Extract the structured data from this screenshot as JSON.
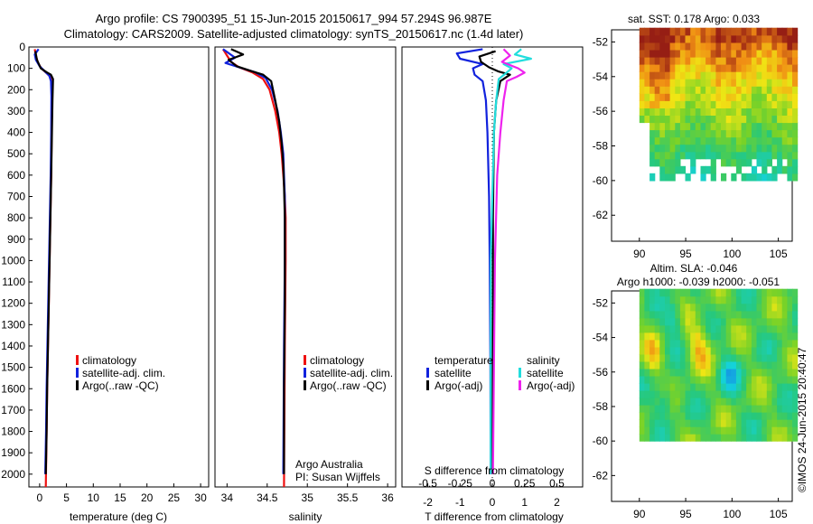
{
  "header": {
    "line1": "Argo profile: CS 7900395_51 15-Jun-2015 20150617_994 57.294S 96.987E",
    "line2": "Climatology: CARS2009. Satellite-adjusted climatology: synTS_20150617.nc (1.4d later)"
  },
  "footer_note": "©IMOS 24-Jun-2015 20:40:47",
  "credits": {
    "line1": "Argo Australia",
    "line2": "PI: Susan Wijffels"
  },
  "colors": {
    "climatology": "#ee1111",
    "satellite": "#1122dd",
    "argo": "#000000",
    "sat_salinity": "#22dddd",
    "argo_salinity": "#ee22ee"
  },
  "chart_data": [
    {
      "type": "line",
      "id": "temperature",
      "xlabel": "temperature (deg C)",
      "ylabel": "",
      "xlim": [
        -2,
        31.5
      ],
      "ylim": [
        2060,
        0
      ],
      "y_reversed": true,
      "xticks": [
        0,
        5,
        10,
        15,
        20,
        25,
        30
      ],
      "yticks": [
        0,
        100,
        200,
        300,
        400,
        500,
        600,
        700,
        800,
        900,
        1000,
        1100,
        1200,
        1300,
        1400,
        1500,
        1600,
        1700,
        1800,
        1900,
        2000
      ],
      "legend": [
        "climatology",
        "satellite-adj. clim.",
        "Argo(..raw -QC)"
      ],
      "series": [
        {
          "name": "climatology",
          "color": "#ee1111",
          "points": [
            [
              -0.9,
              10
            ],
            [
              -0.7,
              40
            ],
            [
              -0.3,
              75
            ],
            [
              0.3,
              100
            ],
            [
              1.2,
              120
            ],
            [
              2.0,
              140
            ],
            [
              2.3,
              170
            ],
            [
              2.3,
              230
            ],
            [
              2.25,
              400
            ],
            [
              2.15,
              600
            ],
            [
              2.0,
              800
            ],
            [
              1.85,
              1000
            ],
            [
              1.7,
              1200
            ],
            [
              1.55,
              1400
            ],
            [
              1.4,
              1600
            ],
            [
              1.3,
              1800
            ],
            [
              1.15,
              2060
            ]
          ]
        },
        {
          "name": "satellite-adj. clim.",
          "color": "#1122dd",
          "points": [
            [
              -0.2,
              10
            ],
            [
              -0.9,
              35
            ],
            [
              -0.7,
              60
            ],
            [
              0.0,
              90
            ],
            [
              1.0,
              115
            ],
            [
              1.8,
              135
            ],
            [
              2.1,
              160
            ],
            [
              2.2,
              230
            ],
            [
              2.15,
              400
            ],
            [
              2.05,
              600
            ],
            [
              1.9,
              800
            ],
            [
              1.75,
              1000
            ],
            [
              1.6,
              1200
            ],
            [
              1.45,
              1400
            ],
            [
              1.3,
              1600
            ],
            [
              1.2,
              1800
            ],
            [
              1.05,
              2000
            ]
          ]
        },
        {
          "name": "Argo(..raw -QC)",
          "color": "#000000",
          "points": [
            [
              -0.8,
              20
            ],
            [
              -0.5,
              60
            ],
            [
              0.2,
              100
            ],
            [
              1.3,
              118
            ],
            [
              2.1,
              130
            ],
            [
              2.5,
              150
            ],
            [
              2.4,
              250
            ],
            [
              2.3,
              400
            ],
            [
              2.15,
              600
            ],
            [
              2.0,
              800
            ],
            [
              1.85,
              1000
            ],
            [
              1.7,
              1200
            ],
            [
              1.55,
              1400
            ],
            [
              1.4,
              1600
            ],
            [
              1.3,
              1800
            ],
            [
              1.15,
              2000
            ]
          ]
        }
      ]
    },
    {
      "type": "line",
      "id": "salinity",
      "xlabel": "salinity",
      "xlim": [
        33.85,
        36.1
      ],
      "ylim": [
        2060,
        0
      ],
      "y_reversed": true,
      "xticks": [
        34,
        34.5,
        35,
        35.5,
        36
      ],
      "legend": [
        "climatology",
        "satellite-adj. clim.",
        "Argo(..raw -QC)"
      ],
      "series": [
        {
          "name": "climatology",
          "color": "#ee1111",
          "points": [
            [
              33.95,
              10
            ],
            [
              34.0,
              40
            ],
            [
              34.05,
              70
            ],
            [
              34.15,
              95
            ],
            [
              34.32,
              120
            ],
            [
              34.45,
              150
            ],
            [
              34.53,
              200
            ],
            [
              34.6,
              300
            ],
            [
              34.65,
              400
            ],
            [
              34.68,
              500
            ],
            [
              34.7,
              600
            ],
            [
              34.72,
              700
            ],
            [
              34.73,
              800
            ],
            [
              34.73,
              1000
            ],
            [
              34.72,
              1400
            ],
            [
              34.71,
              2060
            ]
          ]
        },
        {
          "name": "satellite-adj. clim.",
          "color": "#1122dd",
          "points": [
            [
              33.95,
              10
            ],
            [
              34.1,
              50
            ],
            [
              33.98,
              75
            ],
            [
              34.15,
              95
            ],
            [
              34.35,
              118
            ],
            [
              34.48,
              145
            ],
            [
              34.56,
              200
            ],
            [
              34.63,
              300
            ],
            [
              34.67,
              400
            ],
            [
              34.7,
              500
            ],
            [
              34.71,
              600
            ],
            [
              34.72,
              700
            ],
            [
              34.72,
              1000
            ],
            [
              34.71,
              1400
            ],
            [
              34.7,
              2000
            ]
          ]
        },
        {
          "name": "Argo(..raw -QC)",
          "color": "#000000",
          "points": [
            [
              34.05,
              10
            ],
            [
              34.2,
              35
            ],
            [
              34.02,
              60
            ],
            [
              34.12,
              90
            ],
            [
              34.32,
              115
            ],
            [
              34.45,
              130
            ],
            [
              34.55,
              160
            ],
            [
              34.6,
              250
            ],
            [
              34.65,
              350
            ],
            [
              34.68,
              450
            ],
            [
              34.7,
              550
            ],
            [
              34.71,
              650
            ],
            [
              34.72,
              800
            ],
            [
              34.72,
              1200
            ],
            [
              34.71,
              1600
            ],
            [
              34.71,
              2000
            ]
          ]
        }
      ]
    },
    {
      "type": "line",
      "id": "difference",
      "xlabel": "T difference from climatology",
      "x2label": "S difference from climatology",
      "xlim": [
        -2.8,
        2.8
      ],
      "ylim": [
        2060,
        0
      ],
      "y_reversed": true,
      "xticks": [
        -2,
        -1,
        0,
        1,
        2
      ],
      "x2ticks": [
        "-0.5",
        "-0.25",
        "0",
        "0.25",
        "0.5"
      ],
      "legend_titles": [
        "temperature",
        "salinity"
      ],
      "legend": [
        "satellite",
        "Argo(-adj)",
        "satellite",
        "Argo(-adj)"
      ],
      "series": [
        {
          "name": "temperature satellite",
          "color": "#1122dd",
          "points": [
            [
              -0.3,
              10
            ],
            [
              -1.1,
              30
            ],
            [
              -1.0,
              55
            ],
            [
              -0.3,
              80
            ],
            [
              -0.6,
              100
            ],
            [
              -0.55,
              130
            ],
            [
              -0.3,
              160
            ],
            [
              -0.2,
              250
            ],
            [
              -0.15,
              400
            ],
            [
              -0.1,
              700
            ],
            [
              -0.08,
              1000
            ],
            [
              -0.06,
              1500
            ],
            [
              -0.05,
              2000
            ]
          ]
        },
        {
          "name": "temperature Argo(-adj)",
          "color": "#000000",
          "points": [
            [
              0.1,
              20
            ],
            [
              -0.4,
              45
            ],
            [
              -0.35,
              70
            ],
            [
              -0.1,
              95
            ],
            [
              0.2,
              115
            ],
            [
              0.55,
              130
            ],
            [
              0.25,
              160
            ],
            [
              0.12,
              250
            ],
            [
              0.05,
              400
            ],
            [
              0.02,
              800
            ],
            [
              0.02,
              1200
            ],
            [
              0.0,
              2000
            ]
          ]
        },
        {
          "name": "salinity satellite",
          "color": "#22dddd",
          "points": [
            [
              0.9,
              10
            ],
            [
              0.7,
              35
            ],
            [
              1.2,
              55
            ],
            [
              0.35,
              80
            ],
            [
              0.6,
              100
            ],
            [
              0.4,
              125
            ],
            [
              0.2,
              150
            ],
            [
              0.12,
              250
            ],
            [
              0.05,
              400
            ],
            [
              0.0,
              700
            ],
            [
              -0.05,
              1000
            ],
            [
              -0.05,
              2000
            ]
          ]
        },
        {
          "name": "salinity Argo(-adj)",
          "color": "#ee22ee",
          "points": [
            [
              0.35,
              10
            ],
            [
              0.55,
              40
            ],
            [
              0.3,
              70
            ],
            [
              0.8,
              100
            ],
            [
              1.0,
              120
            ],
            [
              0.75,
              140
            ],
            [
              0.45,
              160
            ],
            [
              0.35,
              250
            ],
            [
              0.25,
              400
            ],
            [
              0.15,
              600
            ],
            [
              0.08,
              1000
            ],
            [
              0.05,
              1500
            ],
            [
              0.02,
              2000
            ]
          ]
        }
      ]
    },
    {
      "type": "heatmap",
      "id": "sst_map",
      "title": "sat. SST: 0.178 Argo: 0.033",
      "xlim": [
        87,
        106.5
      ],
      "ylim": [
        -63.5,
        -51.3
      ],
      "xticks": [
        90,
        95,
        100,
        105
      ],
      "yticks": [
        -52,
        -54,
        -56,
        -58,
        -60,
        -62
      ],
      "data_lon_range": [
        90,
        106.5
      ],
      "data_lat_range": [
        -60,
        -51.3
      ]
    },
    {
      "type": "heatmap",
      "id": "sla_map",
      "title": "Altim. SLA: -0.046",
      "subtitle": "Argo h1000: -0.039 h2000: -0.051",
      "xlim": [
        87,
        106.5
      ],
      "ylim": [
        -63.5,
        -51.3
      ],
      "xticks": [
        90,
        95,
        100,
        105
      ],
      "yticks": [
        -52,
        -54,
        -56,
        -58,
        -60,
        -62
      ],
      "data_lon_range": [
        90,
        106.5
      ],
      "data_lat_range": [
        -60,
        -51.3
      ]
    }
  ]
}
